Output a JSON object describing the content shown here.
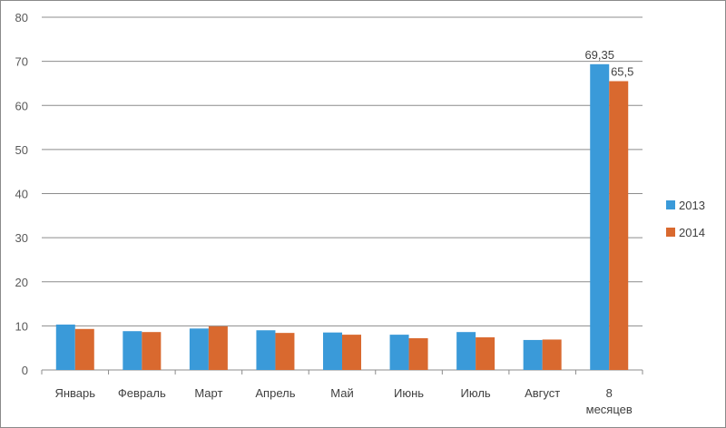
{
  "chart_data": {
    "type": "bar",
    "title": "",
    "xlabel": "",
    "ylabel": "",
    "ylim": [
      0,
      80
    ],
    "yticks": [
      "0",
      "10",
      "20",
      "30",
      "40",
      "50",
      "60",
      "70",
      "80"
    ],
    "categories": [
      "Январь",
      "Февраль",
      "Март",
      "Апрель",
      "Май",
      "Июнь",
      "Июль",
      "Август",
      "8 месяцев"
    ],
    "series": [
      {
        "name": "2013",
        "color": "#3a9ad9",
        "values": [
          10.3,
          8.8,
          9.4,
          9.0,
          8.5,
          8.0,
          8.6,
          6.8,
          69.35
        ],
        "labels": [
          "",
          "",
          "",
          "",
          "",
          "",
          "",
          "",
          "69,35"
        ]
      },
      {
        "name": "2014",
        "color": "#d9692f",
        "values": [
          9.3,
          8.6,
          9.9,
          8.4,
          8.0,
          7.2,
          7.4,
          6.9,
          65.5
        ],
        "labels": [
          "",
          "",
          "",
          "",
          "",
          "",
          "",
          "",
          "65,5"
        ]
      }
    ],
    "grid": true,
    "legend": "right"
  }
}
